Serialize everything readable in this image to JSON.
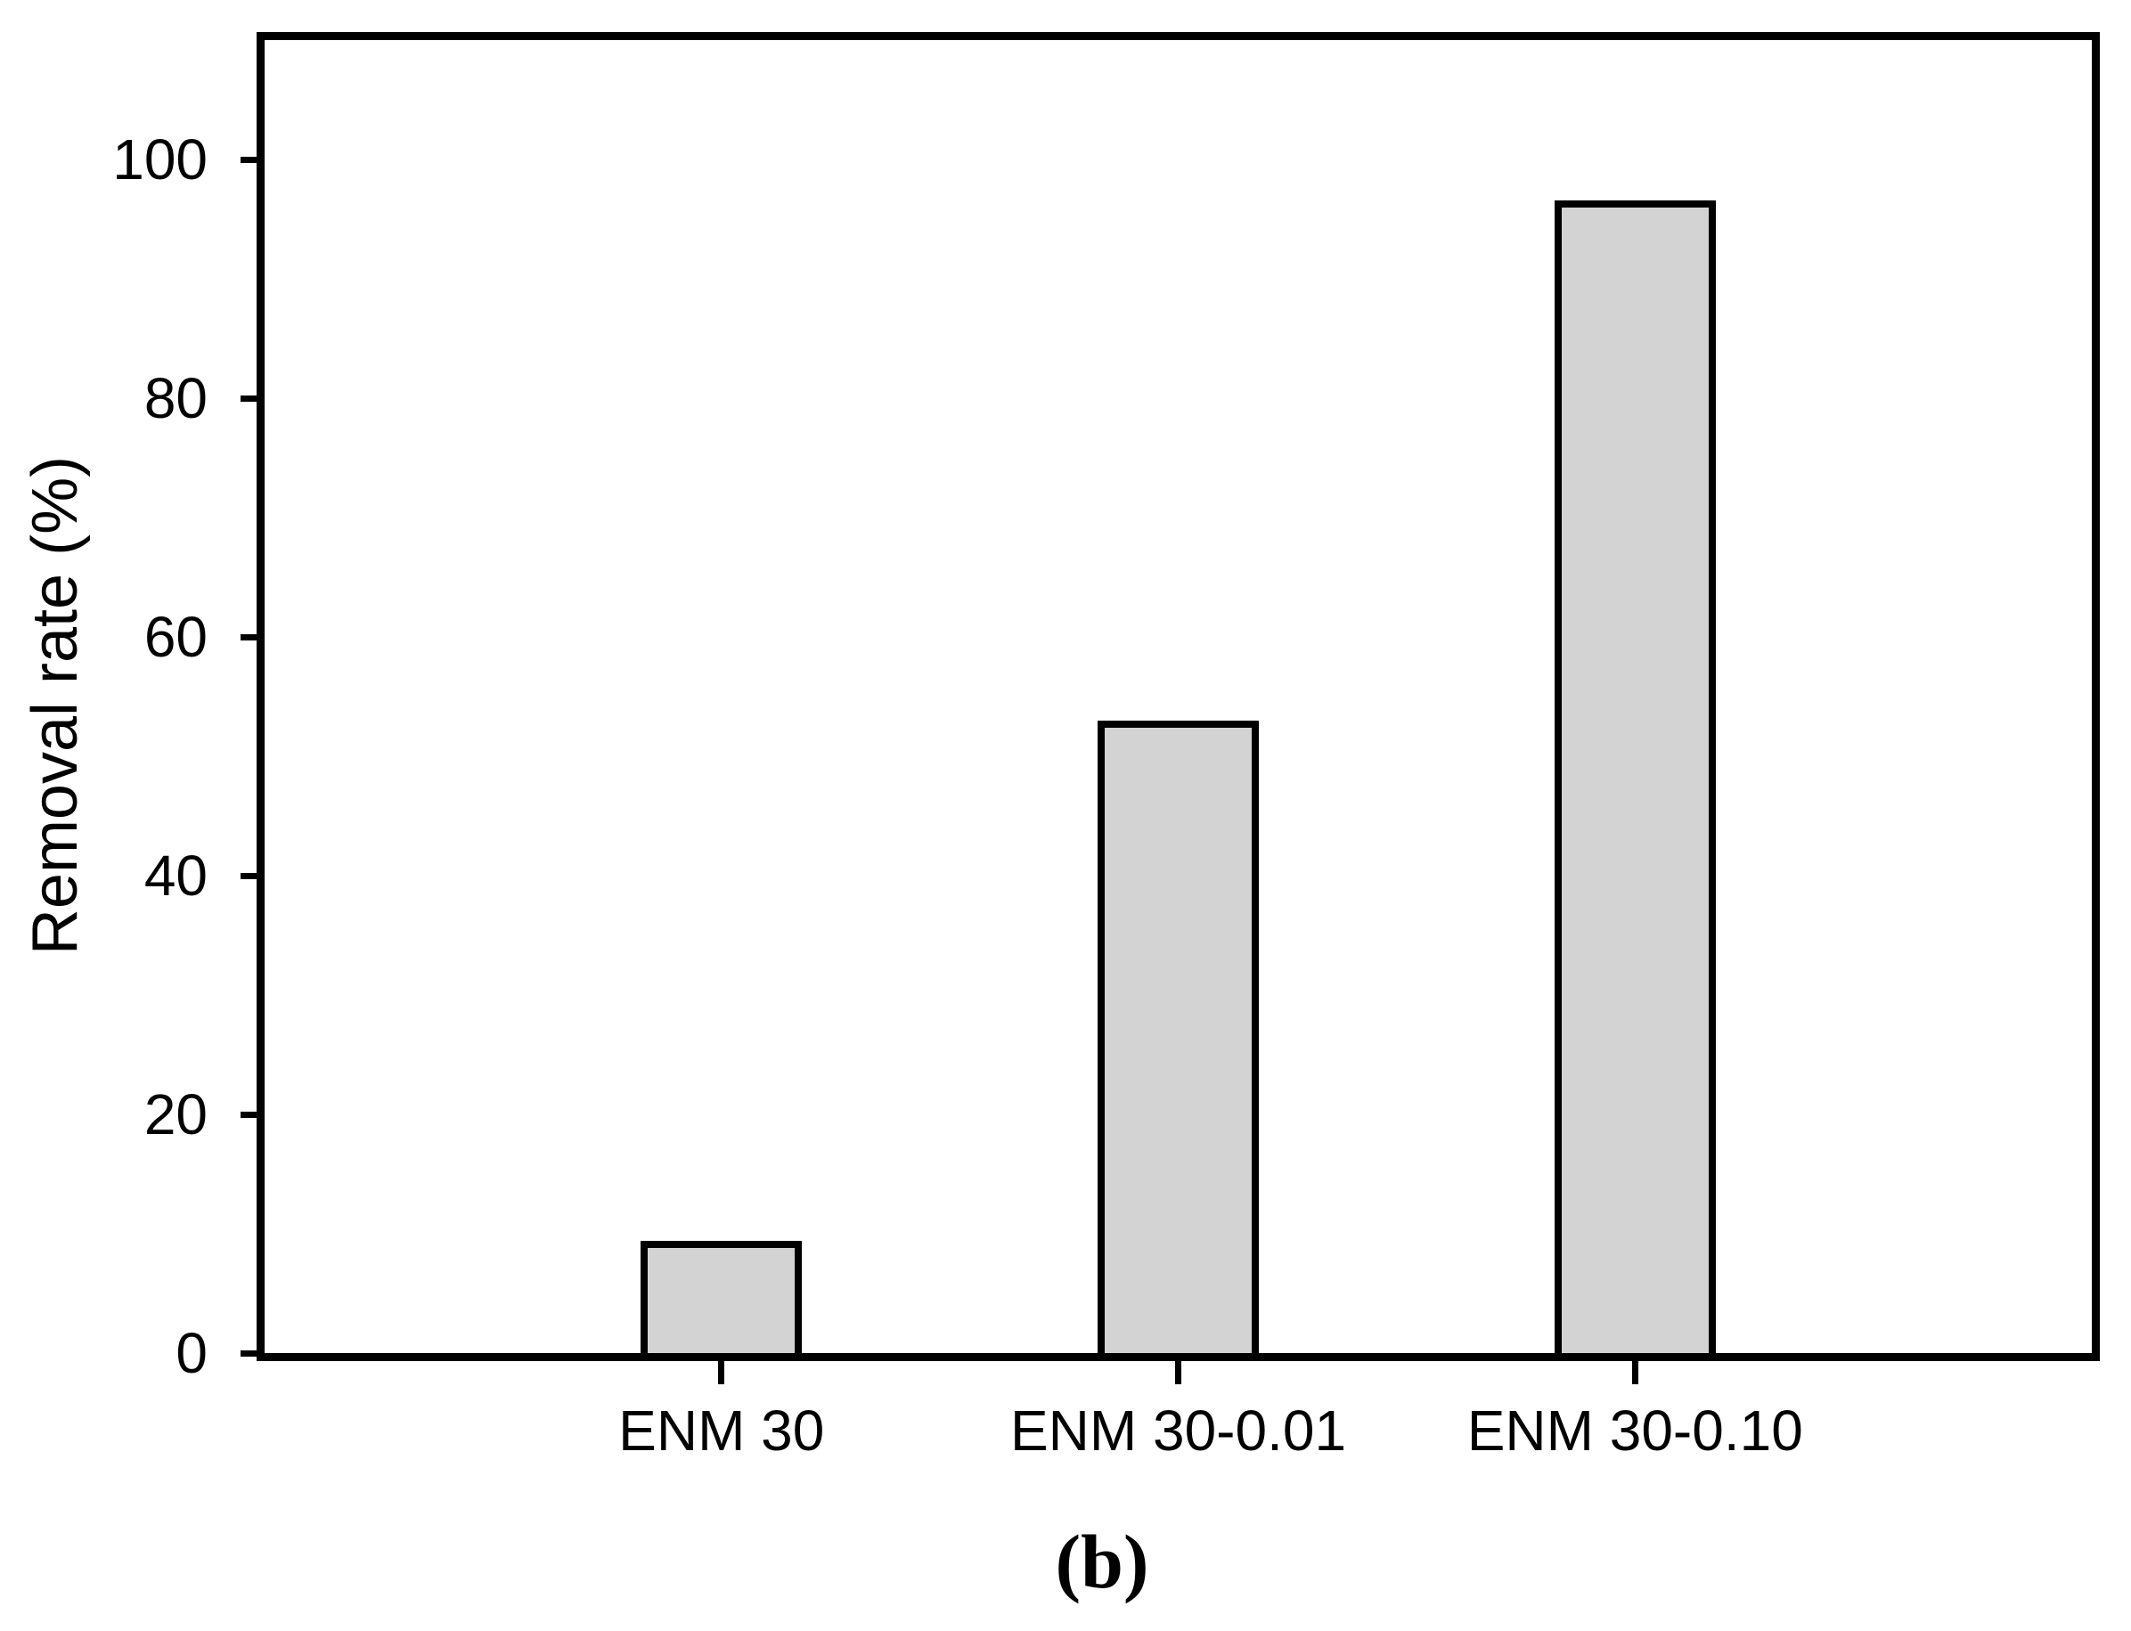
{
  "figure": {
    "caption": "(b)",
    "background": "#ffffff",
    "axis_color": "#000000"
  },
  "chart_data": {
    "type": "bar",
    "title": "",
    "categories": [
      "ENM 30",
      "ENM 30-0.01",
      "ENM 30-0.10"
    ],
    "values": [
      9.4,
      53.0,
      96.6
    ],
    "xlabel": "",
    "ylabel": "Removal rate (%)",
    "ylim": [
      0,
      110
    ],
    "yticks": [
      0,
      20,
      40,
      60,
      80,
      100
    ],
    "grid": false,
    "legend": false,
    "bar_fill": "#d3d3d3",
    "bar_border": "#000000"
  }
}
